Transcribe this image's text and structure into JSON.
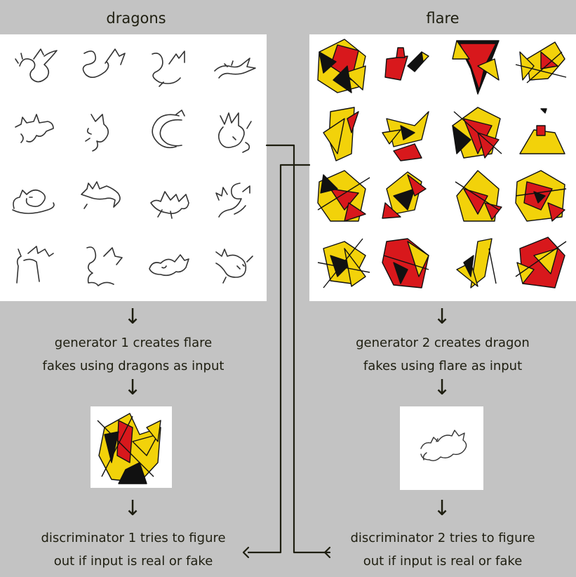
{
  "left": {
    "title": "dragons",
    "caption1_line1": "generator 1 creates flare",
    "caption1_line2": "fakes using dragons as input",
    "caption2_line1": "discriminator 1 tries to figure",
    "caption2_line2": "out if input is real or fake"
  },
  "right": {
    "title": "flare",
    "caption1_line1": "generator 2 creates dragon",
    "caption1_line2": "fakes using flare as input",
    "caption2_line1": "discriminator 2 tries to figure",
    "caption2_line2": "out if input is real or fake"
  },
  "colors": {
    "background": "#c3c3c3",
    "text": "#1e1e10",
    "yellow": "#f2d20a",
    "red": "#d8181c",
    "black": "#111111"
  },
  "icons": {
    "down_arrow": "down-arrow-icon"
  }
}
